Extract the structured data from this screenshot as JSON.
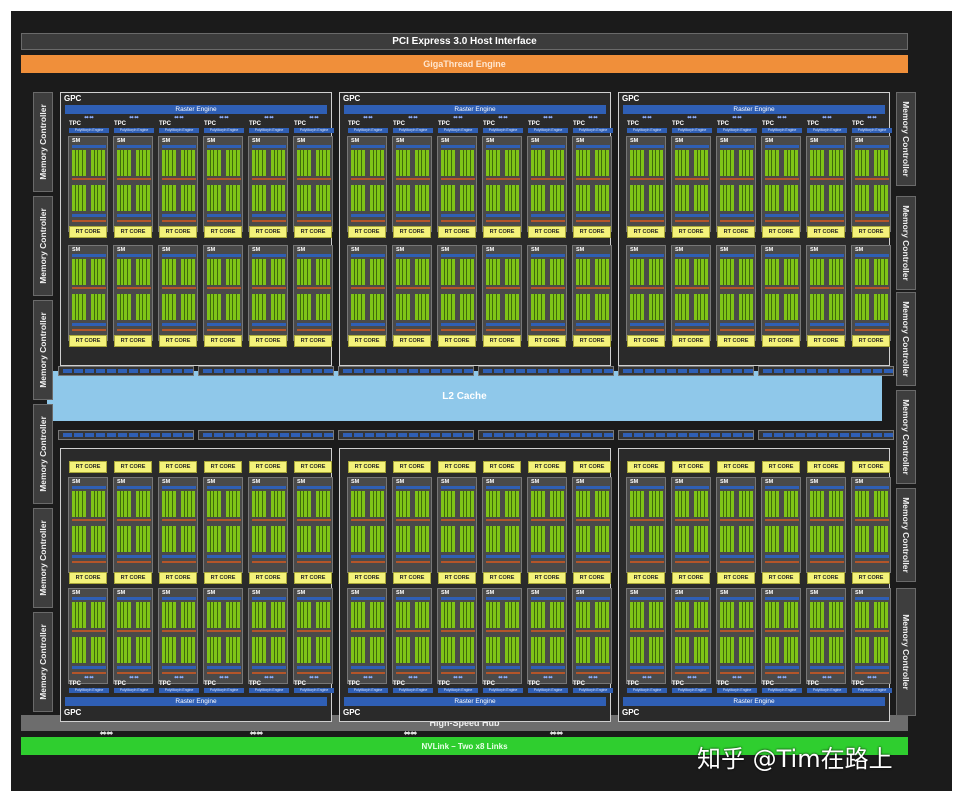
{
  "pcie": "PCI Express 3.0 Host Interface",
  "gigathread": "GigaThread Engine",
  "l2": "L2 Cache",
  "hub": "High-Speed Hub",
  "nvlink": "NVLink – Two x8 Links",
  "memory_controller": "Memory Controller",
  "gpc": "GPC",
  "raster": "Raster Engine",
  "tpc": "TPC",
  "polymorph": "PolyMorph Engine",
  "sm": "SM",
  "rt": "RT CORE",
  "watermark": "知乎 @Tim在路上",
  "colors": {
    "background": "#1b1b1b",
    "giga": "#f08f3a",
    "l2": "#8fc8ea",
    "nvlink": "#2fce2f",
    "cores": "#7fc417",
    "raster": "#2f5fb5",
    "rt_core": "#f4f27a"
  },
  "icons": [
    "bidirectional-arrow-icon"
  ]
}
